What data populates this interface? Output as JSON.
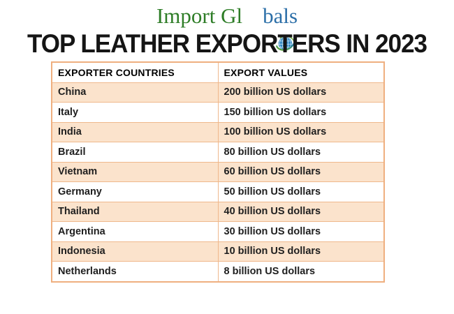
{
  "logo": {
    "text_left": "Import Gl",
    "text_right": "bals",
    "green_color": "#2e7d27",
    "blue_color": "#2c6fa8",
    "globe_icon": "globe-with-orbit-swoosh"
  },
  "title": "TOP LEATHER EXPORTERS IN 2023",
  "table": {
    "headers": [
      "EXPORTER COUNTRIES",
      "EXPORT VALUES"
    ],
    "rows": [
      [
        "China",
        "200 billion US dollars"
      ],
      [
        "Italy",
        "150 billion US dollars"
      ],
      [
        "India",
        "100 billion US dollars"
      ],
      [
        "Brazil",
        "80 billion US dollars"
      ],
      [
        "Vietnam",
        "60 billion US dollars"
      ],
      [
        "Germany",
        "50 billion US dollars"
      ],
      [
        "Thailand",
        "40 billion US dollars"
      ],
      [
        "Argentina",
        "30 billion US dollars"
      ],
      [
        "Indonesia",
        "10 billion US dollars"
      ],
      [
        "Netherlands",
        "8 billion US dollars"
      ]
    ],
    "colors": {
      "alt_row_bg": "#fbe3cc",
      "border": "#efb88c",
      "header_bg": "#ffffff",
      "text": "#1e1e1e"
    }
  },
  "chart_data": {
    "type": "table",
    "title": "TOP LEATHER EXPORTERS IN 2023",
    "columns": [
      "EXPORTER COUNTRIES",
      "EXPORT VALUES"
    ],
    "categories": [
      "China",
      "Italy",
      "India",
      "Brazil",
      "Vietnam",
      "Germany",
      "Thailand",
      "Argentina",
      "Indonesia",
      "Netherlands"
    ],
    "values": [
      200,
      150,
      100,
      80,
      60,
      50,
      40,
      30,
      10,
      8
    ],
    "unit": "billion US dollars",
    "layout": "two-column table, alternating peach/white rows, orange borders"
  }
}
